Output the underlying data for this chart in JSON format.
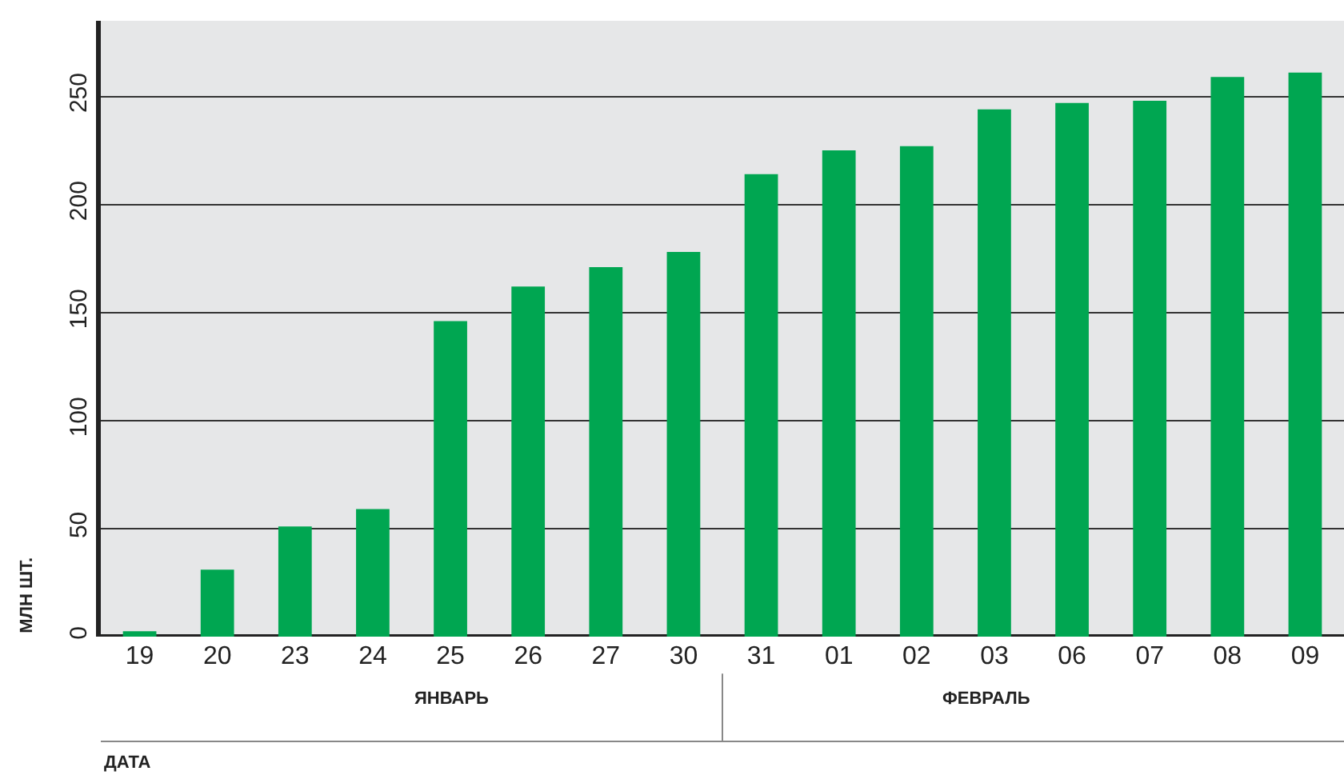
{
  "chart_data": {
    "type": "bar",
    "ylabel": "МЛН ШТ.",
    "categories": [
      "19",
      "20",
      "23",
      "24",
      "25",
      "26",
      "27",
      "30",
      "31",
      "01",
      "02",
      "03",
      "06",
      "07",
      "08",
      "09"
    ],
    "values": [
      2.5,
      31,
      51,
      59,
      146,
      162,
      171,
      178,
      214,
      225,
      227,
      244,
      247,
      248,
      259,
      261
    ],
    "color": "#00a651",
    "ylim": [
      0,
      285
    ],
    "yticks": [
      0,
      50,
      100,
      150,
      200,
      250
    ],
    "grid": "y",
    "annotations": [
      "ЯНВАРЬ",
      "ФЕВРАЛЬ",
      "ДАТА"
    ]
  }
}
